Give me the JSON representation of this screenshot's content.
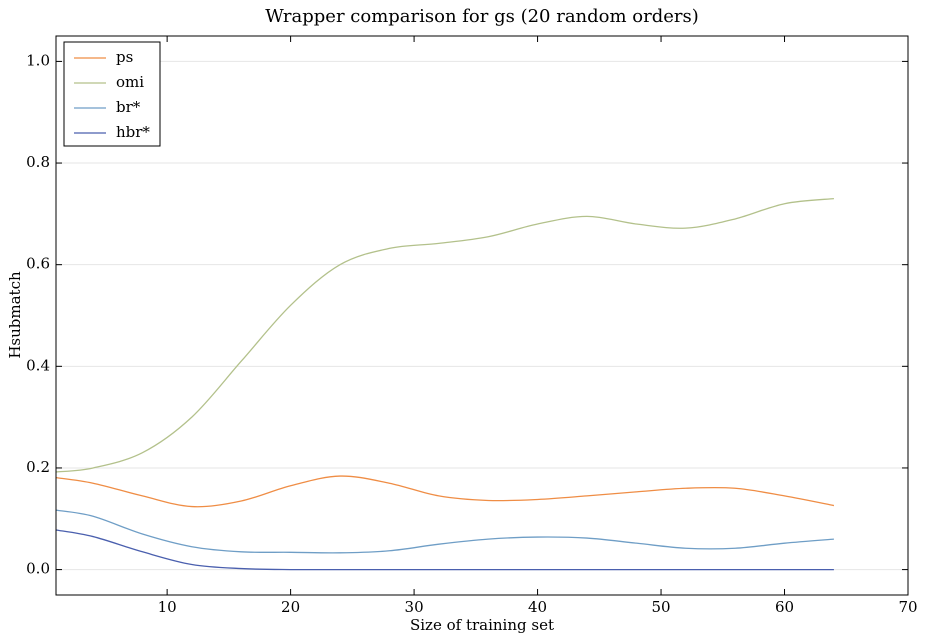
{
  "chart_data": {
    "type": "line",
    "title": "Wrapper comparison for gs (20 random orders)",
    "xlabel": "Size of training set",
    "ylabel": "Hsubmatch",
    "x": [
      1,
      4,
      8,
      12,
      16,
      20,
      24,
      28,
      32,
      36,
      40,
      44,
      48,
      52,
      56,
      60,
      64
    ],
    "series": [
      {
        "name": "ps",
        "color": "#ef8d45",
        "values": [
          0.181,
          0.17,
          0.145,
          0.124,
          0.135,
          0.165,
          0.184,
          0.17,
          0.145,
          0.136,
          0.138,
          0.145,
          0.153,
          0.16,
          0.16,
          0.145,
          0.126
        ]
      },
      {
        "name": "omi",
        "color": "#b3c18b",
        "values": [
          0.192,
          0.2,
          0.23,
          0.3,
          0.41,
          0.52,
          0.6,
          0.632,
          0.642,
          0.655,
          0.68,
          0.695,
          0.68,
          0.672,
          0.69,
          0.72,
          0.73
        ]
      },
      {
        "name": "br*",
        "color": "#6f9ec6",
        "values": [
          0.117,
          0.105,
          0.07,
          0.045,
          0.035,
          0.034,
          0.033,
          0.037,
          0.05,
          0.06,
          0.064,
          0.062,
          0.052,
          0.042,
          0.042,
          0.052,
          0.06
        ]
      },
      {
        "name": "hbr*",
        "color": "#4a5fae",
        "values": [
          0.078,
          0.065,
          0.035,
          0.01,
          0.002,
          0,
          0,
          0,
          0,
          0,
          0,
          0,
          0,
          0,
          0,
          0,
          0
        ]
      }
    ],
    "xlim": [
      1,
      70
    ],
    "xticks": [
      10,
      20,
      30,
      40,
      50,
      60,
      70
    ],
    "ylim": [
      -0.05,
      1.05
    ],
    "yticks": [
      {
        "value": 0,
        "label": "0.0"
      },
      {
        "value": 0.2,
        "label": "0.2"
      },
      {
        "value": 0.4,
        "label": "0.4"
      },
      {
        "value": 0.6,
        "label": "0.6"
      },
      {
        "value": 0.8,
        "label": "0.8"
      },
      {
        "value": 1,
        "label": "1.0"
      }
    ],
    "grid": true,
    "legend": "upper left"
  }
}
